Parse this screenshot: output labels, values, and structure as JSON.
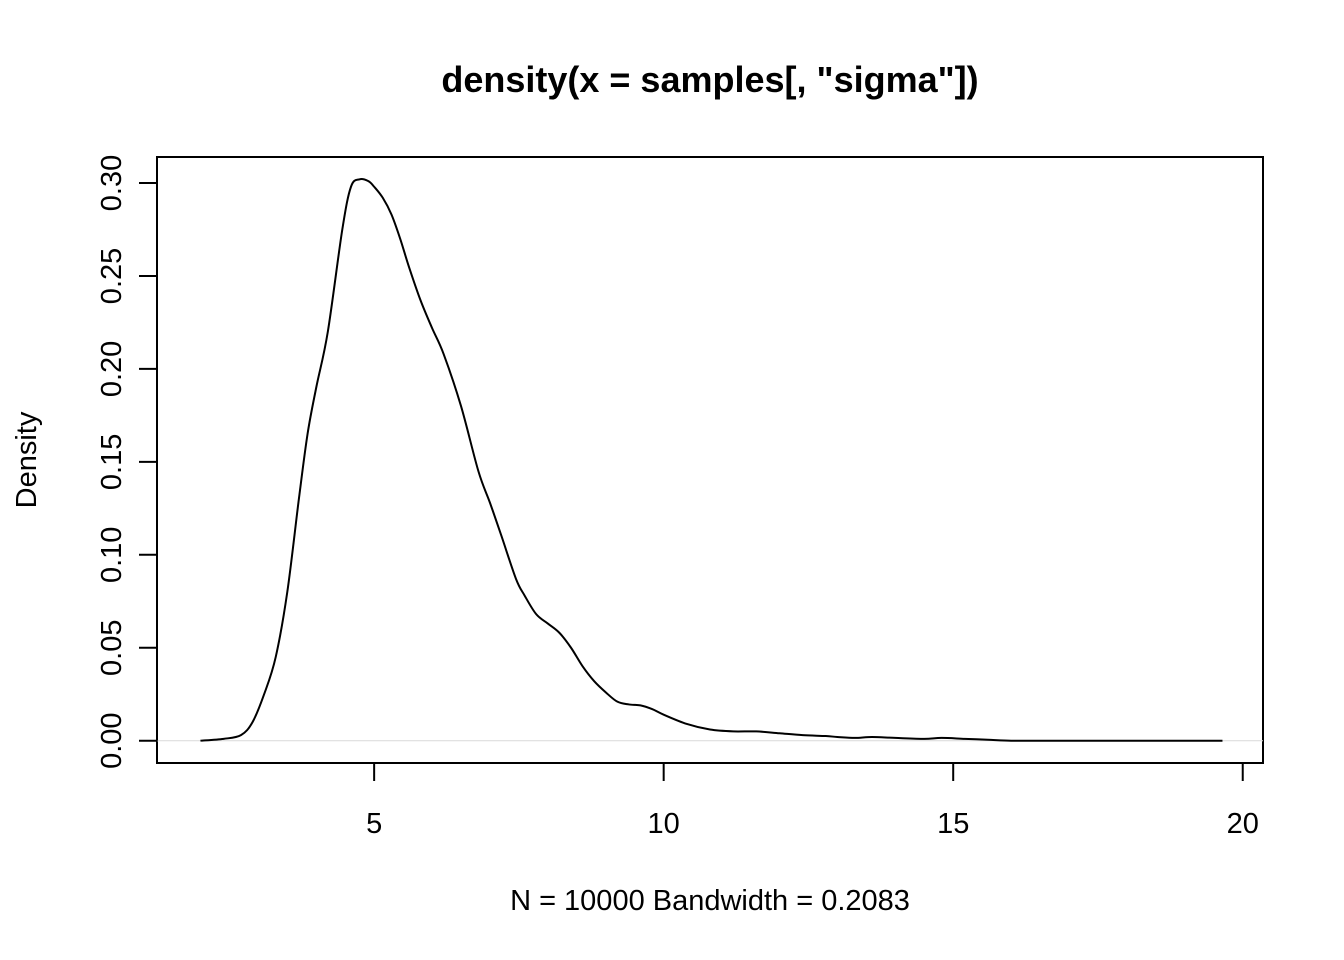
{
  "chart_data": {
    "type": "line",
    "title": "density(x = samples[, \"sigma\"])",
    "xlabel": "N = 10000   Bandwidth = 0.2083",
    "ylabel": "Density",
    "xlim": [
      1.25,
      20.35
    ],
    "ylim": [
      -0.012,
      0.314
    ],
    "x_ticks": [
      5,
      10,
      15,
      20
    ],
    "x_tick_labels": [
      "5",
      "10",
      "15",
      "20"
    ],
    "y_ticks": [
      0,
      0.05,
      0.1,
      0.15,
      0.2,
      0.25,
      0.3
    ],
    "y_tick_labels": [
      "0.00",
      "0.05",
      "0.10",
      "0.15",
      "0.20",
      "0.25",
      "0.30"
    ],
    "grid": false,
    "line_color": "#000000",
    "zero_line_color": "#d9d9d9",
    "series": [
      {
        "x": [
          2.0,
          2.4,
          2.7,
          2.9,
          3.1,
          3.3,
          3.5,
          3.7,
          3.85,
          4.0,
          4.2,
          4.45,
          4.6,
          4.75,
          4.9,
          5.0,
          5.15,
          5.3,
          5.45,
          5.6,
          5.8,
          6.0,
          6.2,
          6.5,
          6.8,
          7.0,
          7.2,
          7.45,
          7.6,
          7.8,
          8.0,
          8.2,
          8.4,
          8.6,
          8.8,
          9.0,
          9.2,
          9.4,
          9.6,
          9.8,
          10.0,
          10.4,
          10.8,
          11.2,
          11.6,
          12.0,
          12.4,
          12.8,
          13.0,
          13.3,
          13.6,
          14.0,
          14.5,
          14.8,
          15.2,
          15.6,
          16.0,
          16.5,
          17.0,
          17.5,
          18.0,
          18.5,
          19.0,
          19.65
        ],
        "y": [
          0.0,
          0.001,
          0.003,
          0.01,
          0.025,
          0.045,
          0.08,
          0.13,
          0.165,
          0.19,
          0.22,
          0.275,
          0.298,
          0.302,
          0.301,
          0.298,
          0.292,
          0.283,
          0.27,
          0.255,
          0.237,
          0.222,
          0.208,
          0.18,
          0.145,
          0.128,
          0.11,
          0.087,
          0.078,
          0.068,
          0.063,
          0.058,
          0.05,
          0.04,
          0.032,
          0.026,
          0.021,
          0.0195,
          0.019,
          0.017,
          0.014,
          0.009,
          0.006,
          0.005,
          0.005,
          0.004,
          0.003,
          0.0025,
          0.002,
          0.0015,
          0.002,
          0.0015,
          0.001,
          0.0015,
          0.001,
          0.0005,
          0.0,
          0.0,
          0.0,
          0.0,
          0.0,
          0.0,
          0.0,
          0.0
        ]
      }
    ]
  }
}
